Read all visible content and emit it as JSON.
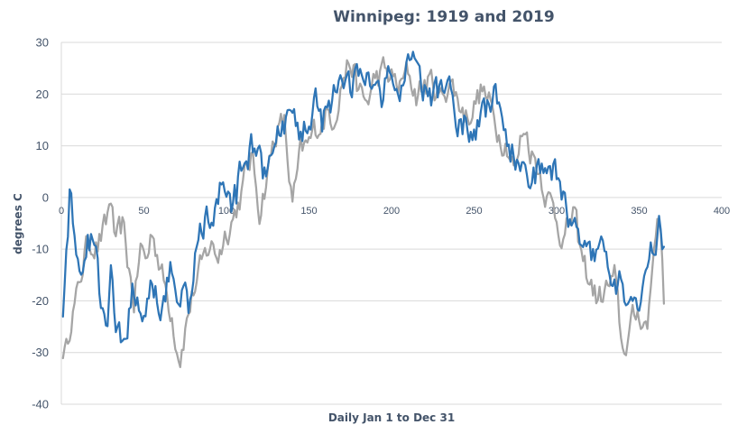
{
  "chart_data": {
    "type": "line",
    "title": "Winnipeg: 1919 and 2019",
    "xlabel": "Daily Jan 1 to Dec 31",
    "ylabel": "degrees C",
    "xlim": [
      0,
      400
    ],
    "ylim": [
      -40,
      30
    ],
    "xticks": [
      "0",
      "50",
      "100",
      "150",
      "200",
      "250",
      "300",
      "350",
      "400"
    ],
    "yticks": [
      "30",
      "20",
      "10",
      "0",
      "-10",
      "-20",
      "-30",
      "-40"
    ],
    "grid": "horizontal",
    "legend": "none",
    "series": [
      {
        "color": "#a5a5a5",
        "anchors": [
          [
            1,
            -29
          ],
          [
            3,
            -30
          ],
          [
            6,
            -22
          ],
          [
            10,
            -19
          ],
          [
            14,
            -11
          ],
          [
            18,
            -8
          ],
          [
            22,
            -9
          ],
          [
            27,
            -6
          ],
          [
            30,
            0
          ],
          [
            33,
            -10
          ],
          [
            37,
            -6
          ],
          [
            41,
            -14
          ],
          [
            44,
            -20
          ],
          [
            48,
            -10
          ],
          [
            52,
            -12
          ],
          [
            55,
            -6
          ],
          [
            58,
            -10
          ],
          [
            61,
            -15
          ],
          [
            64,
            -19
          ],
          [
            67,
            -22
          ],
          [
            70,
            -28
          ],
          [
            72,
            -30
          ],
          [
            75,
            -25
          ],
          [
            80,
            -18
          ],
          [
            85,
            -14
          ],
          [
            90,
            -9
          ],
          [
            95,
            -11
          ],
          [
            100,
            -6
          ],
          [
            105,
            -3
          ],
          [
            110,
            2
          ],
          [
            115,
            8
          ],
          [
            120,
            -2
          ],
          [
            125,
            5
          ],
          [
            130,
            13
          ],
          [
            135,
            14
          ],
          [
            140,
            -2
          ],
          [
            145,
            8
          ],
          [
            150,
            10
          ],
          [
            155,
            14
          ],
          [
            160,
            16
          ],
          [
            165,
            16
          ],
          [
            170,
            23
          ],
          [
            174,
            26
          ],
          [
            176,
            26
          ],
          [
            180,
            20
          ],
          [
            185,
            18
          ],
          [
            190,
            23
          ],
          [
            195,
            24
          ],
          [
            200,
            23
          ],
          [
            205,
            21
          ],
          [
            210,
            24
          ],
          [
            215,
            20
          ],
          [
            220,
            22
          ],
          [
            225,
            22
          ],
          [
            230,
            19
          ],
          [
            235,
            23
          ],
          [
            240,
            19
          ],
          [
            245,
            16
          ],
          [
            250,
            18
          ],
          [
            255,
            21
          ],
          [
            260,
            17
          ],
          [
            265,
            13
          ],
          [
            270,
            11
          ],
          [
            275,
            5
          ],
          [
            280,
            14
          ],
          [
            285,
            9
          ],
          [
            290,
            5
          ],
          [
            295,
            0
          ],
          [
            300,
            -4
          ],
          [
            305,
            -8
          ],
          [
            310,
            -3
          ],
          [
            315,
            -12
          ],
          [
            320,
            -16
          ],
          [
            325,
            -20
          ],
          [
            330,
            -18
          ],
          [
            335,
            -16
          ],
          [
            340,
            -30
          ],
          [
            345,
            -25
          ],
          [
            350,
            -22
          ],
          [
            355,
            -25
          ],
          [
            360,
            -5
          ],
          [
            363,
            -5
          ],
          [
            365,
            -18
          ],
          [
            366,
            -20
          ]
        ],
        "jitter": 2.6
      },
      {
        "color": "#2e75b6",
        "anchors": [
          [
            1,
            -21
          ],
          [
            3,
            -10
          ],
          [
            5,
            0
          ],
          [
            7,
            -6
          ],
          [
            10,
            -12
          ],
          [
            13,
            -15
          ],
          [
            16,
            -9
          ],
          [
            20,
            -10
          ],
          [
            24,
            -20
          ],
          [
            27,
            -26
          ],
          [
            30,
            -16
          ],
          [
            33,
            -25
          ],
          [
            36,
            -29
          ],
          [
            38,
            -31
          ],
          [
            41,
            -24
          ],
          [
            44,
            -18
          ],
          [
            48,
            -24
          ],
          [
            52,
            -20
          ],
          [
            55,
            -15
          ],
          [
            58,
            -18
          ],
          [
            61,
            -22
          ],
          [
            64,
            -17
          ],
          [
            67,
            -14
          ],
          [
            70,
            -20
          ],
          [
            74,
            -18
          ],
          [
            78,
            -21
          ],
          [
            82,
            -10
          ],
          [
            86,
            -5
          ],
          [
            90,
            -2
          ],
          [
            94,
            -4
          ],
          [
            98,
            3
          ],
          [
            102,
            -3
          ],
          [
            106,
            0
          ],
          [
            110,
            8
          ],
          [
            114,
            9
          ],
          [
            118,
            10
          ],
          [
            122,
            3
          ],
          [
            126,
            6
          ],
          [
            130,
            9
          ],
          [
            134,
            13
          ],
          [
            138,
            15
          ],
          [
            142,
            12
          ],
          [
            146,
            12
          ],
          [
            150,
            17
          ],
          [
            154,
            18
          ],
          [
            158,
            15
          ],
          [
            162,
            20
          ],
          [
            166,
            19
          ],
          [
            170,
            20
          ],
          [
            174,
            21
          ],
          [
            178,
            22
          ],
          [
            182,
            23
          ],
          [
            186,
            21
          ],
          [
            190,
            22
          ],
          [
            194,
            20
          ],
          [
            198,
            23
          ],
          [
            202,
            20
          ],
          [
            206,
            22
          ],
          [
            210,
            24
          ],
          [
            214,
            24
          ],
          [
            218,
            21
          ],
          [
            222,
            20
          ],
          [
            226,
            19
          ],
          [
            230,
            21
          ],
          [
            234,
            22
          ],
          [
            238,
            18
          ],
          [
            242,
            15
          ],
          [
            246,
            14
          ],
          [
            250,
            13
          ],
          [
            254,
            16
          ],
          [
            258,
            17
          ],
          [
            262,
            19
          ],
          [
            266,
            15
          ],
          [
            270,
            12
          ],
          [
            274,
            8
          ],
          [
            278,
            7
          ],
          [
            282,
            5
          ],
          [
            286,
            4
          ],
          [
            290,
            4
          ],
          [
            294,
            6
          ],
          [
            298,
            5
          ],
          [
            302,
            2
          ],
          [
            306,
            -2
          ],
          [
            310,
            -6
          ],
          [
            314,
            -6
          ],
          [
            318,
            -9
          ],
          [
            322,
            -10
          ],
          [
            326,
            -8
          ],
          [
            330,
            -12
          ],
          [
            334,
            -14
          ],
          [
            338,
            -16
          ],
          [
            342,
            -18
          ],
          [
            346,
            -20
          ],
          [
            350,
            -19
          ],
          [
            354,
            -16
          ],
          [
            358,
            -10
          ],
          [
            362,
            -6
          ],
          [
            365,
            -12
          ]
        ],
        "jitter": 3.0
      }
    ]
  }
}
